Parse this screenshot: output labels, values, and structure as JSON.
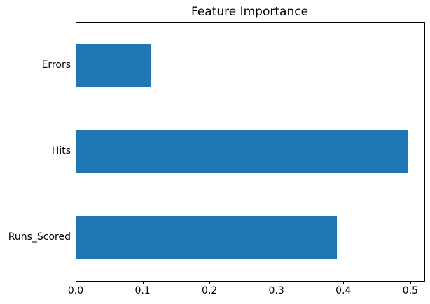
{
  "chart_data": {
    "type": "bar",
    "orientation": "horizontal",
    "title": "Feature Importance",
    "xlabel": "",
    "ylabel": "",
    "categories": [
      "Runs_Scored",
      "Hits",
      "Errors"
    ],
    "values": [
      0.39,
      0.497,
      0.113
    ],
    "xlim": [
      0,
      0.52
    ],
    "xticks": [
      0.0,
      0.1,
      0.2,
      0.3,
      0.4,
      0.5
    ],
    "xtick_labels": [
      "0.0",
      "0.1",
      "0.2",
      "0.3",
      "0.4",
      "0.5"
    ],
    "bar_color": "#1f77b4",
    "axis_color": "#000000",
    "text_color": "#000000",
    "background_color": "#ffffff",
    "grid": false,
    "legend": null
  }
}
